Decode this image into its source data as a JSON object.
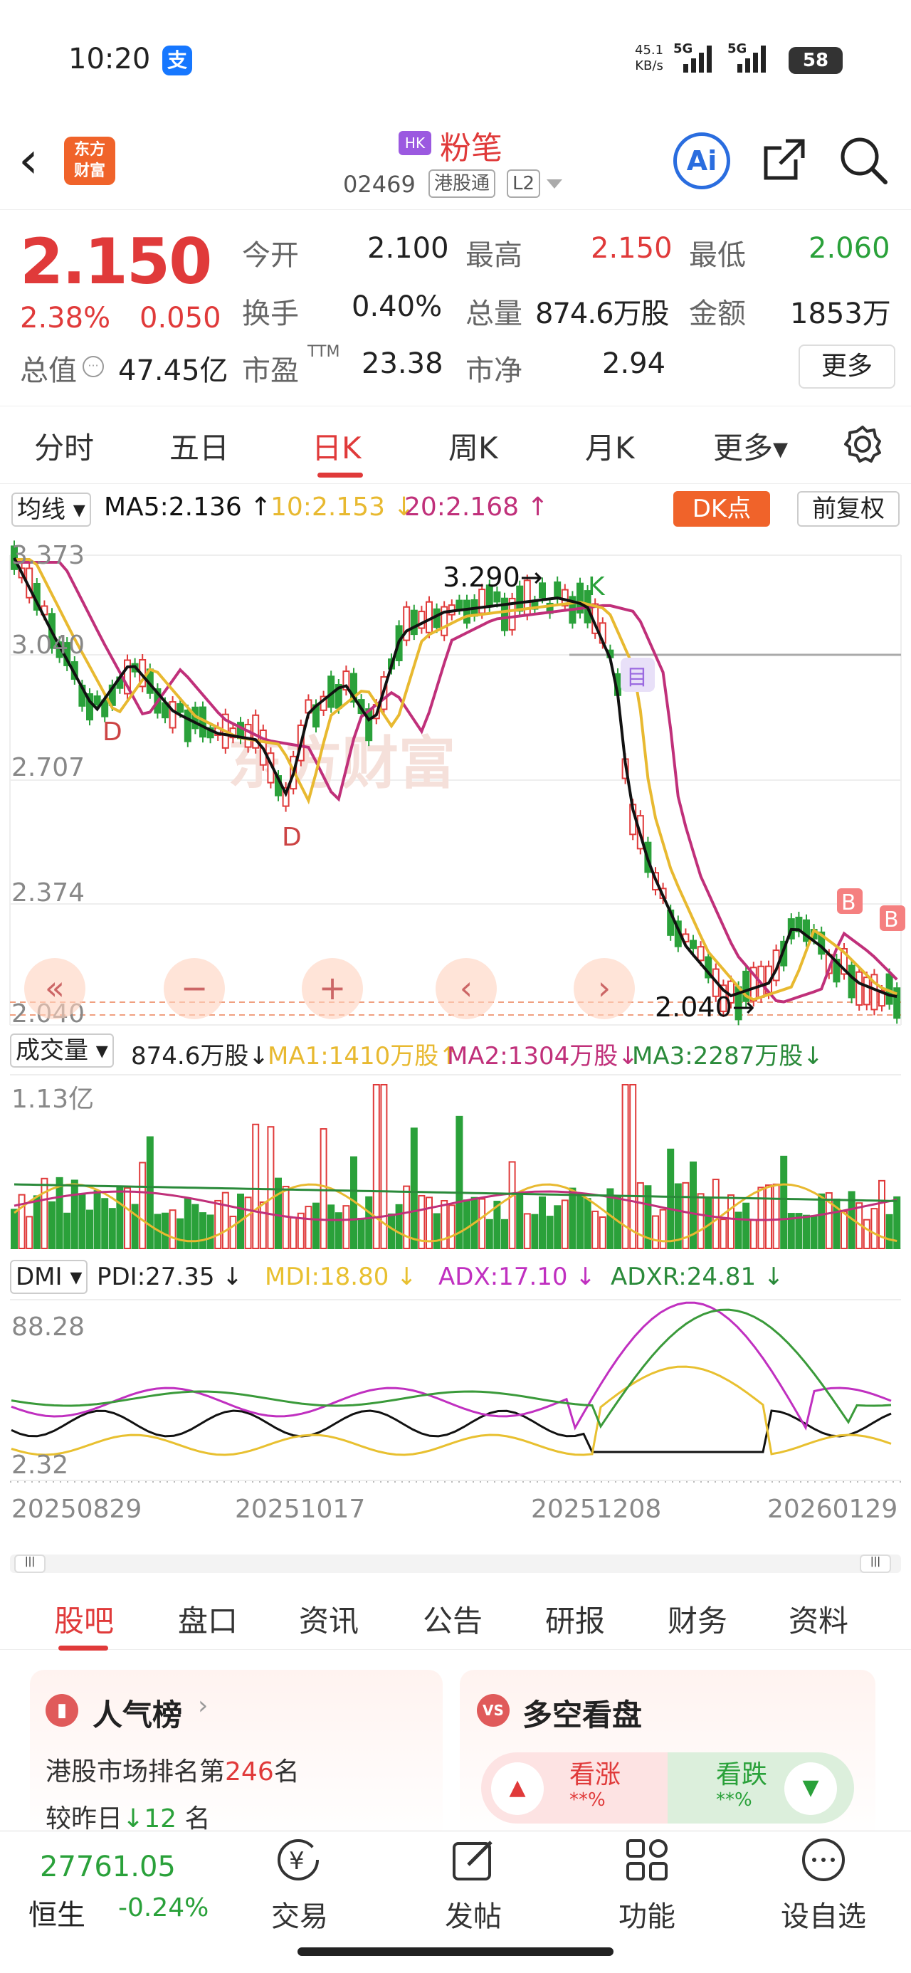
{
  "status": {
    "time": "10:20",
    "alipay": "支",
    "net_speed": "45.1",
    "net_unit": "KB/s",
    "sig1": "5G",
    "sig2": "5G",
    "battery": "58"
  },
  "header": {
    "logo_line1": "东方",
    "logo_line2": "财富",
    "market_badge": "HK",
    "name": "粉笔",
    "code": "02469",
    "tag1": "港股通",
    "tag2": "L2",
    "ai": "Ai"
  },
  "quote": {
    "price": "2.150",
    "change_pct": "2.38%",
    "change": "0.050",
    "open_label": "今开",
    "open": "2.100",
    "high_label": "最高",
    "high": "2.150",
    "low_label": "最低",
    "low": "2.060",
    "turnover_label": "换手",
    "turnover": "0.40%",
    "volume_label": "总量",
    "volume": "874.6万股",
    "amount_label": "金额",
    "amount": "1853万",
    "mktcap_label": "总值",
    "mktcap": "47.45亿",
    "pe_label": "市盈",
    "pe_sup": "TTM",
    "pe": "23.38",
    "pb_label": "市净",
    "pb": "2.94",
    "more": "更多"
  },
  "tabs": [
    "分时",
    "五日",
    "日K",
    "周K",
    "月K",
    "更多▾"
  ],
  "ma": {
    "selector": "均线",
    "ma5": "MA5:2.136",
    "ma10": "10:2.153",
    "ma20": "20:2.168",
    "dk": "DK点",
    "fq": "前复权"
  },
  "kchart": {
    "y_labels": [
      "3.373",
      "3.040",
      "2.707",
      "2.374",
      "2.040"
    ],
    "high_note": "3.290",
    "low_note": "2.040",
    "letters": [
      "D",
      "D",
      "K",
      "B"
    ],
    "watermark": "东方财富",
    "controls": [
      "«",
      "−",
      "+",
      "‹",
      "›"
    ]
  },
  "volume": {
    "selector": "成交量",
    "value": "874.6万股",
    "ma1": "MA1:1410万股",
    "ma2": "MA2:1304万股",
    "ma3": "MA3:2287万股",
    "max_label": "1.13亿"
  },
  "dmi": {
    "selector": "DMI",
    "pdi": "PDI:27.35",
    "mdi": "MDI:18.80",
    "adx": "ADX:17.10",
    "adxr": "ADXR:24.81",
    "max_label": "88.28",
    "min_label": "2.32"
  },
  "dates": [
    "20250829",
    "20251017",
    "20251208",
    "20260129"
  ],
  "sub_tabs": [
    "股吧",
    "盘口",
    "资讯",
    "公告",
    "研报",
    "财务",
    "资料"
  ],
  "popularity": {
    "title": "人气榜",
    "rank_text": "港股市场排名第",
    "rank": "246",
    "rank_unit": "名",
    "compare_text": "较昨日",
    "delta": "12",
    "delta_unit": "名"
  },
  "sentiment": {
    "title": "多空看盘",
    "up": "看涨",
    "up_val": "**%",
    "down": "看跌",
    "down_val": "**%"
  },
  "bottom": {
    "index_value": "27761.05",
    "index_name": "恒生",
    "index_change": "-0.24%",
    "items": [
      "交易",
      "发帖",
      "功能",
      "设自选"
    ]
  },
  "colors": {
    "up": "#e03a3a",
    "down": "#2aa13a",
    "ma5": "#111111",
    "ma10": "#e8b930",
    "ma20": "#c0307a"
  }
}
